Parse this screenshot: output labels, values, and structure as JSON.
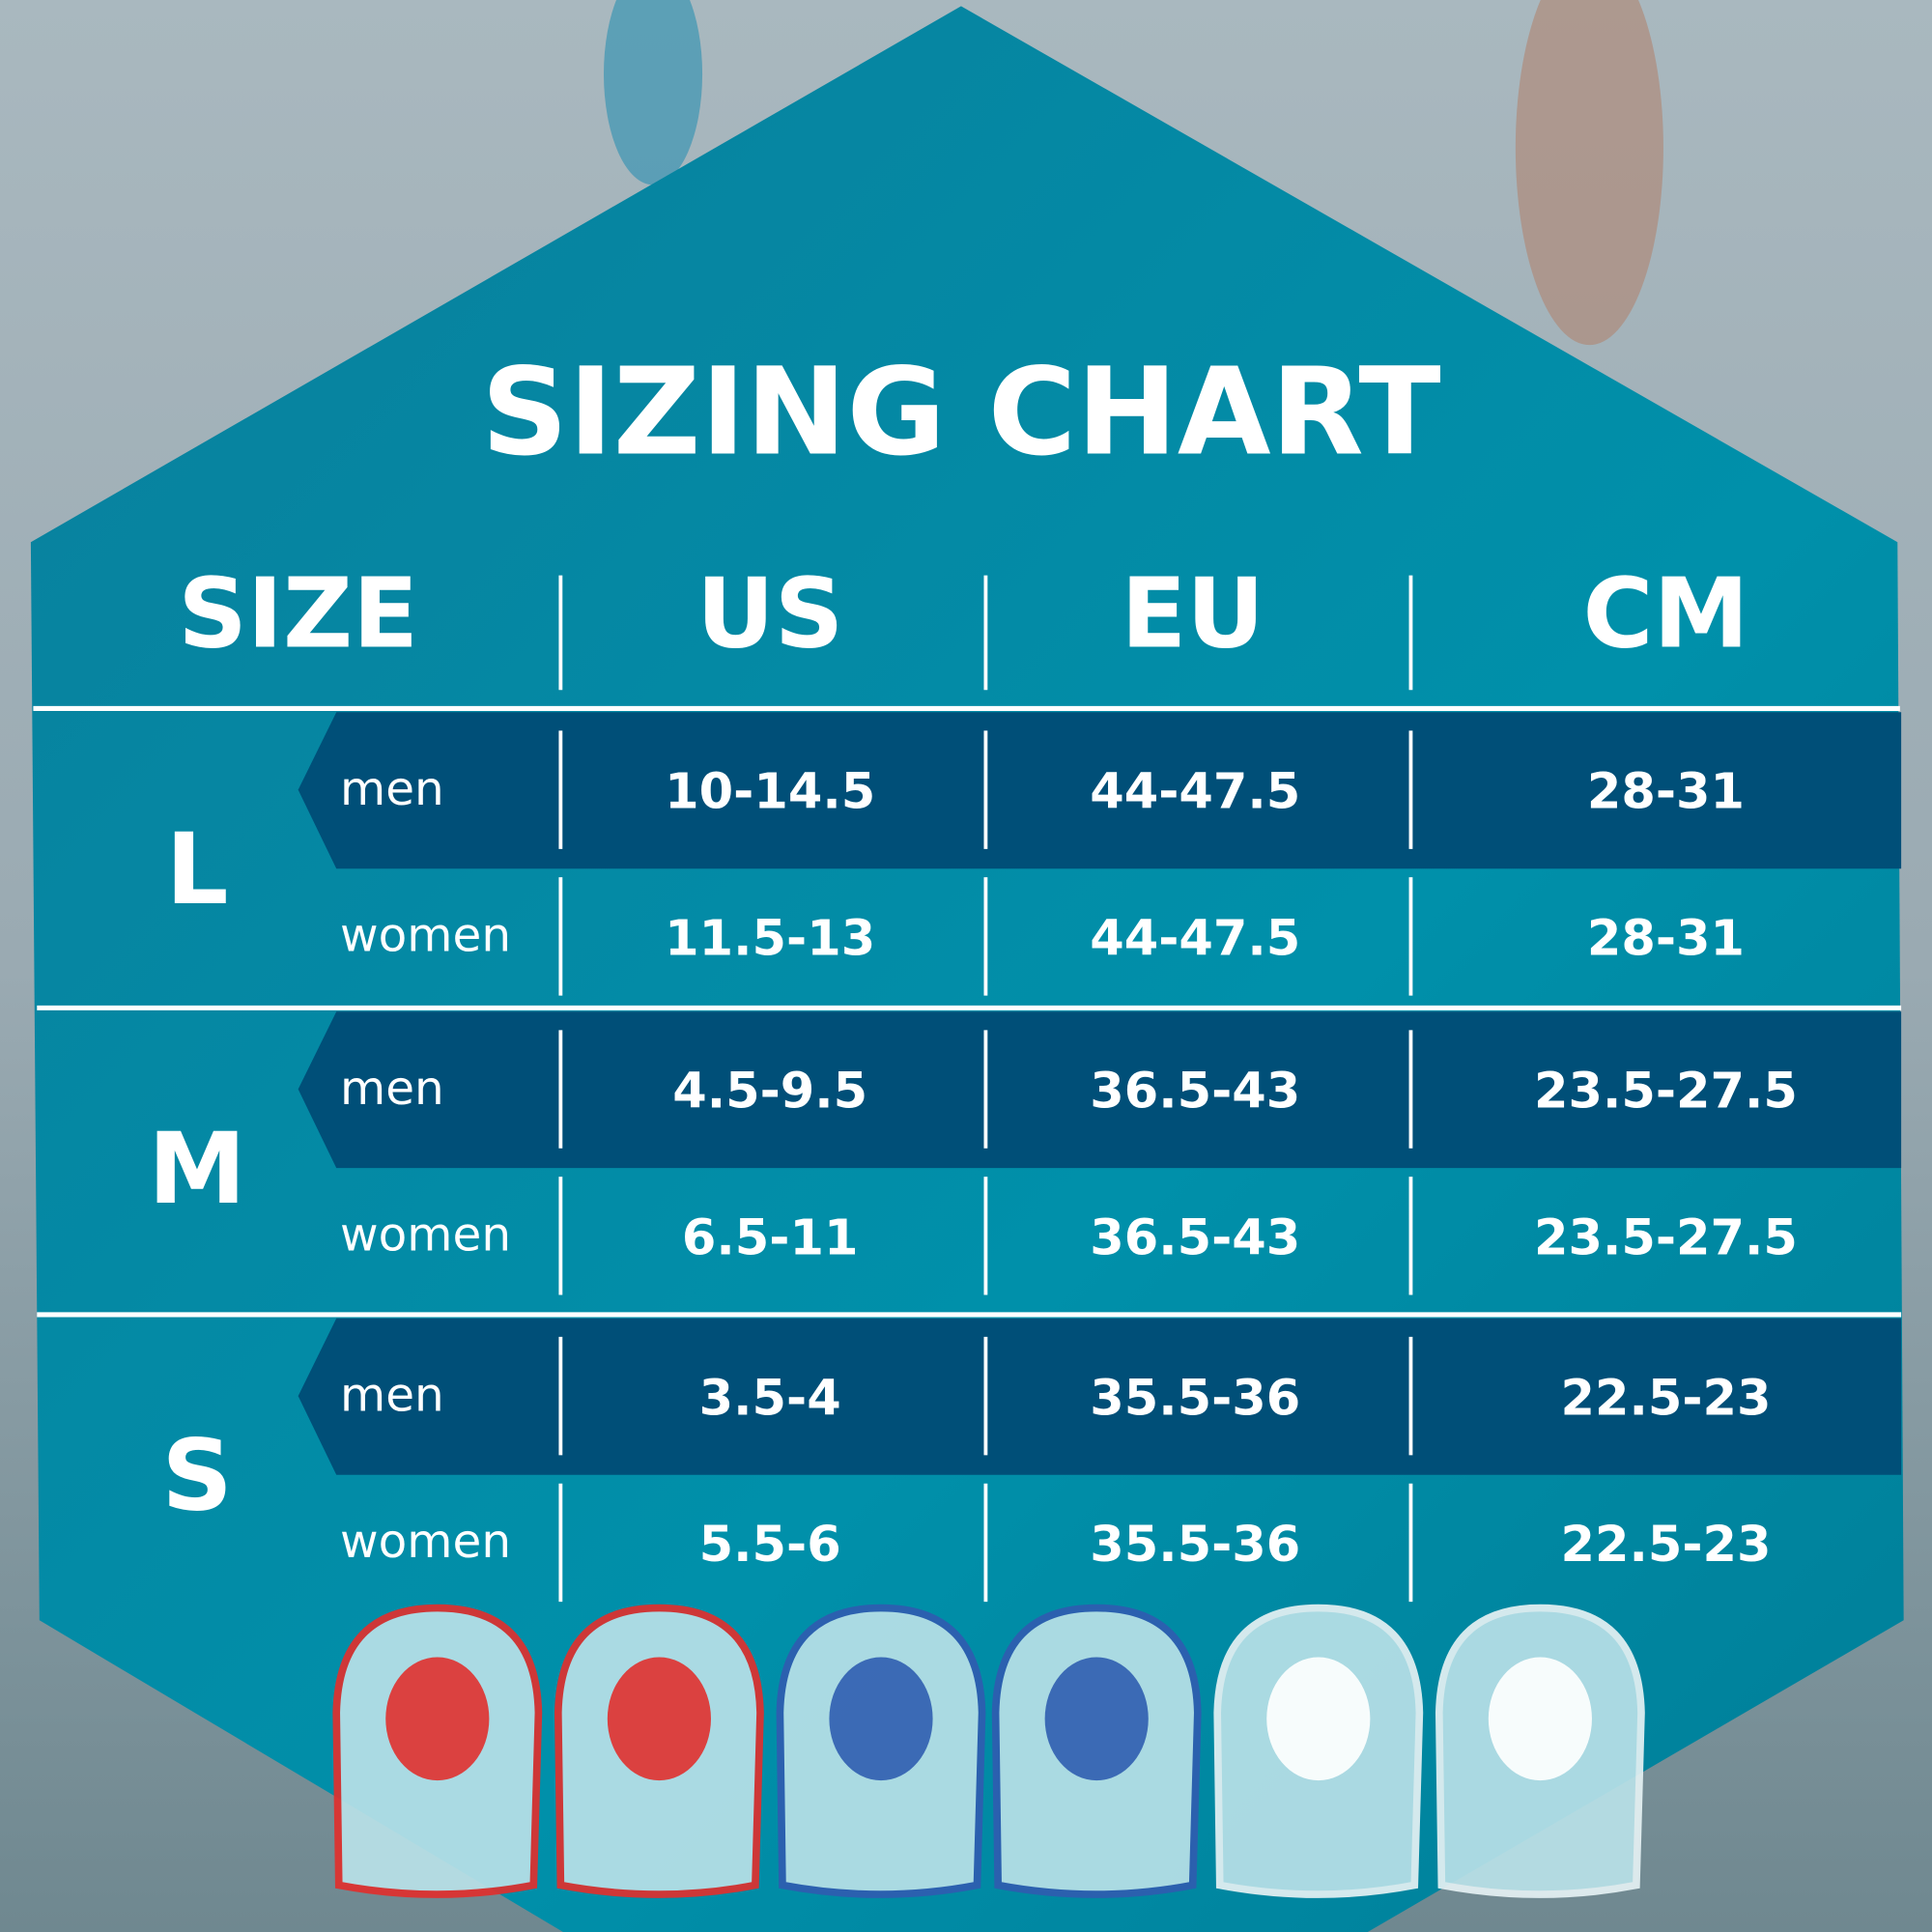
{
  "title": "SIZING CHART",
  "headers": [
    "SIZE",
    "US",
    "EU",
    "CM"
  ],
  "groups": [
    {
      "size": "L",
      "rows": [
        {
          "gender": "men",
          "us": "10-14.5",
          "eu": "44-47.5",
          "cm": "28-31"
        },
        {
          "gender": "women",
          "us": "11.5-13",
          "eu": "44-47.5",
          "cm": "28-31"
        }
      ]
    },
    {
      "size": "M",
      "rows": [
        {
          "gender": "men",
          "us": "4.5-9.5",
          "eu": "36.5-43",
          "cm": "23.5-27.5"
        },
        {
          "gender": "women",
          "us": "6.5-11",
          "eu": "36.5-43",
          "cm": "23.5-27.5"
        }
      ]
    },
    {
      "size": "S",
      "rows": [
        {
          "gender": "men",
          "us": "3.5-4",
          "eu": "35.5-36",
          "cm": "22.5-23"
        },
        {
          "gender": "women",
          "us": "5.5-6",
          "eu": "35.5-36",
          "cm": "22.5-23"
        }
      ]
    }
  ],
  "insoles": [
    {
      "color": "#e0302e"
    },
    {
      "color": "#e0302e"
    },
    {
      "color": "#2f5db0"
    },
    {
      "color": "#2f5db0"
    },
    {
      "color": "#ffffff"
    },
    {
      "color": "#ffffff"
    }
  ],
  "colors": {
    "hexagon": "#0088a3",
    "band": "#004f78",
    "text": "#ffffff"
  }
}
